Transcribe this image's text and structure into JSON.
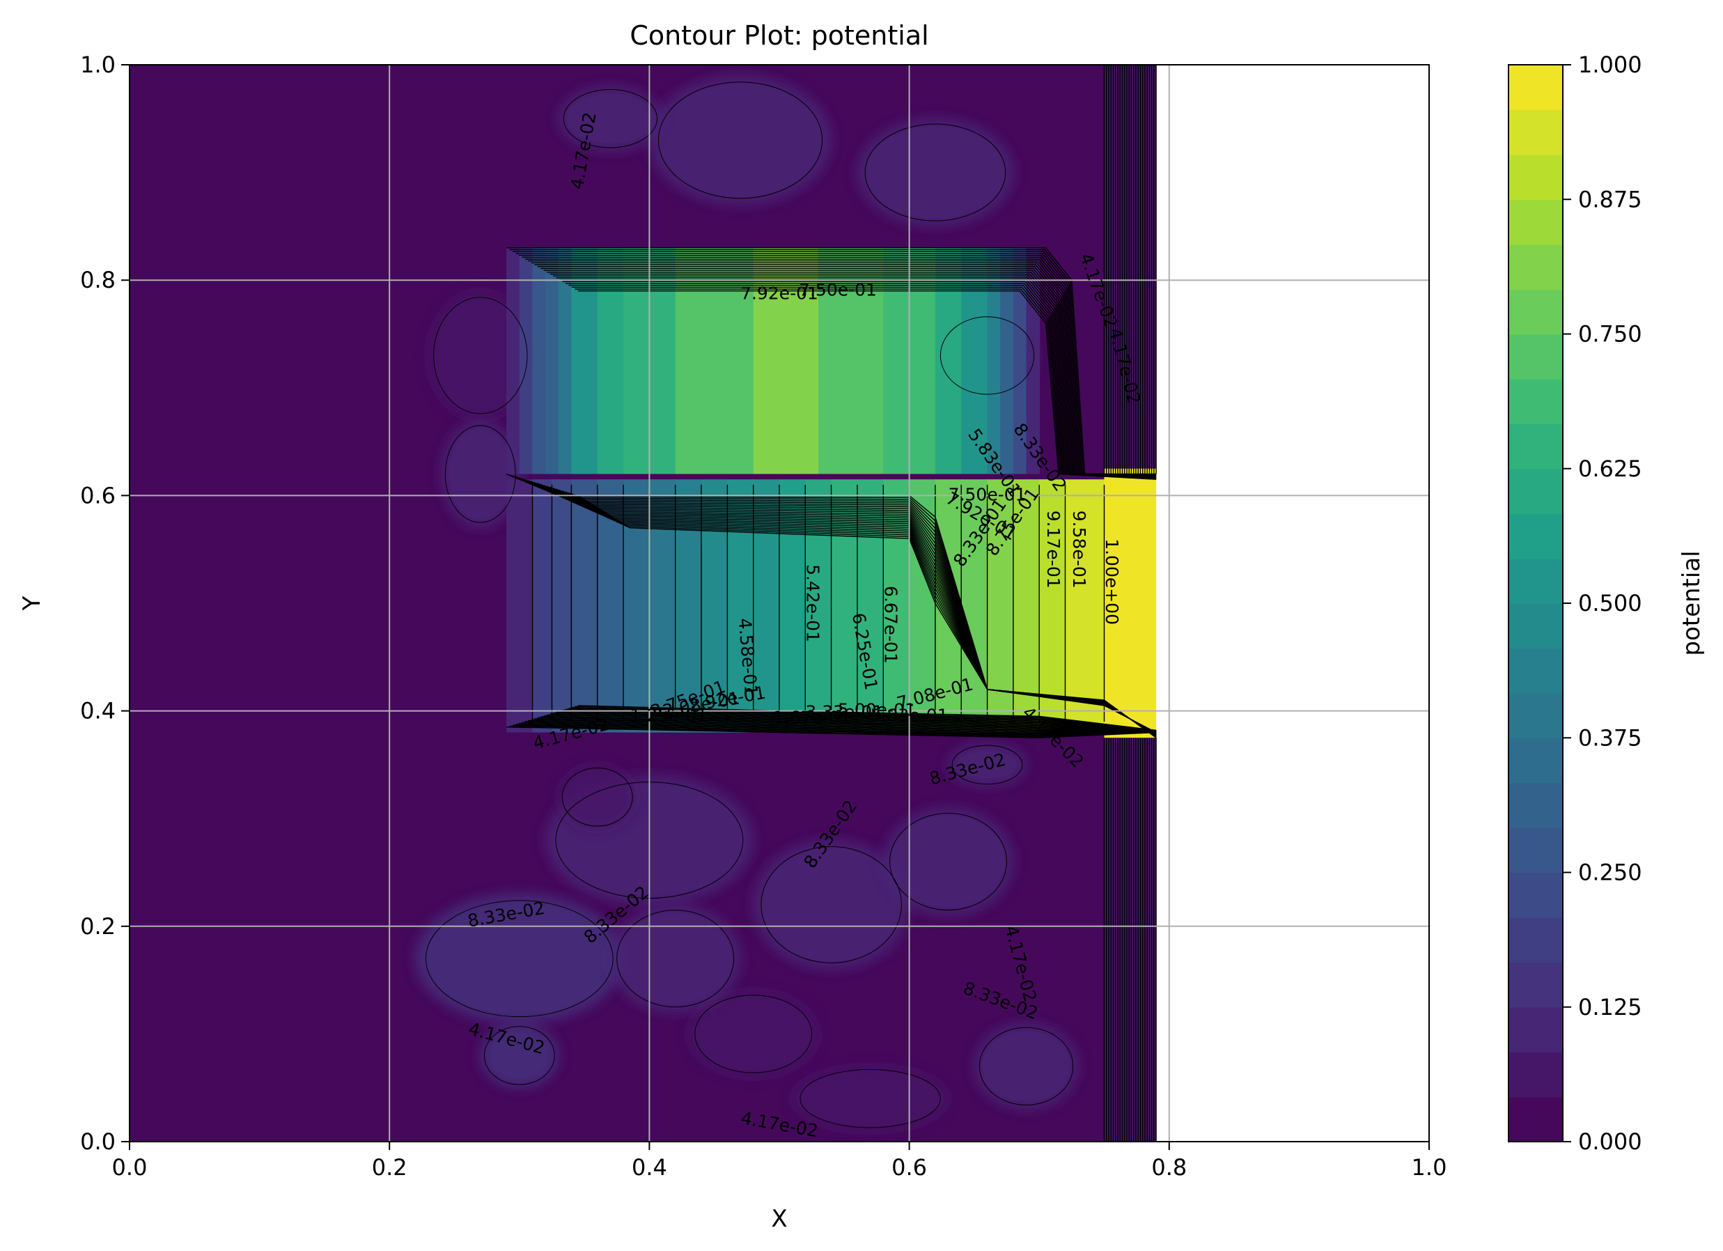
{
  "chart_data": {
    "type": "contour",
    "title": "Contour Plot: potential",
    "xlabel": "X",
    "ylabel": "Y",
    "xlim": [
      0.0,
      1.0
    ],
    "ylim": [
      0.0,
      1.0
    ],
    "grid": true,
    "x_ticks": [
      "0.0",
      "0.2",
      "0.4",
      "0.6",
      "0.8",
      "1.0"
    ],
    "y_ticks": [
      "0.0",
      "0.2",
      "0.4",
      "0.6",
      "0.8",
      "1.0"
    ],
    "colorbar": {
      "label": "potential",
      "colormap": "viridis",
      "range": [
        0.0,
        1.0
      ],
      "levels": 24,
      "ticks": [
        "0.000",
        "0.125",
        "0.250",
        "0.375",
        "0.500",
        "0.625",
        "0.750",
        "0.875",
        "1.000"
      ]
    },
    "regions": {
      "background_value": 0.02,
      "noisy_patches_value_range": [
        0.042,
        0.15
      ],
      "high_region": {
        "x": [
          0.29,
          0.79
        ],
        "y": [
          0.38,
          0.83
        ],
        "max_value": 0.85,
        "peak_x": 0.5,
        "peak_y": 0.7
      },
      "electrode": {
        "x": [
          0.75,
          1.0
        ],
        "y": [
          0.375,
          0.625
        ],
        "value": 1.0
      },
      "blank_region_x": [
        0.79,
        1.0
      ]
    },
    "contour_labels": [
      {
        "text": "4.17e-02",
        "x": 0.35,
        "y": 0.92,
        "angle": -80
      },
      {
        "text": "7.92e-01",
        "x": 0.5,
        "y": 0.787,
        "angle": 0
      },
      {
        "text": "7.50e-01",
        "x": 0.545,
        "y": 0.79,
        "angle": 0
      },
      {
        "text": "4.17e-02",
        "x": 0.745,
        "y": 0.79,
        "angle": 70
      },
      {
        "text": "4.17e-02",
        "x": 0.765,
        "y": 0.72,
        "angle": 75
      },
      {
        "text": "5.83e-01",
        "x": 0.665,
        "y": 0.63,
        "angle": 55
      },
      {
        "text": "8.33e-02",
        "x": 0.7,
        "y": 0.635,
        "angle": 55
      },
      {
        "text": "7.50e-01",
        "x": 0.66,
        "y": 0.6,
        "angle": 0
      },
      {
        "text": "7.92e-01",
        "x": 0.655,
        "y": 0.58,
        "angle": 30
      },
      {
        "text": "8.33e-01",
        "x": 0.655,
        "y": 0.565,
        "angle": -55
      },
      {
        "text": "8.75e-01",
        "x": 0.68,
        "y": 0.575,
        "angle": -55
      },
      {
        "text": "9.17e-01",
        "x": 0.71,
        "y": 0.55,
        "angle": 90
      },
      {
        "text": "9.58e-01",
        "x": 0.73,
        "y": 0.55,
        "angle": 90
      },
      {
        "text": "1.00e+00",
        "x": 0.755,
        "y": 0.52,
        "angle": 90
      },
      {
        "text": "5.42e-01",
        "x": 0.525,
        "y": 0.5,
        "angle": 90
      },
      {
        "text": "6.67e-01",
        "x": 0.585,
        "y": 0.48,
        "angle": 90
      },
      {
        "text": "6.25e-01",
        "x": 0.565,
        "y": 0.455,
        "angle": 80
      },
      {
        "text": "4.58e-01",
        "x": 0.475,
        "y": 0.45,
        "angle": 85
      },
      {
        "text": "7.08e-01",
        "x": 0.62,
        "y": 0.415,
        "angle": -15
      },
      {
        "text": "4.17e-02",
        "x": 0.71,
        "y": 0.375,
        "angle": 45
      },
      {
        "text": "3.75e-01",
        "x": 0.43,
        "y": 0.41,
        "angle": -20
      },
      {
        "text": "2.08e-01",
        "x": 0.44,
        "y": 0.405,
        "angle": -10
      },
      {
        "text": "2.92e-01",
        "x": 0.46,
        "y": 0.41,
        "angle": -10
      },
      {
        "text": "1.25e-01",
        "x": 0.415,
        "y": 0.395,
        "angle": 0
      },
      {
        "text": "1.67e-01",
        "x": 0.525,
        "y": 0.393,
        "angle": 0
      },
      {
        "text": "3.33e-01",
        "x": 0.55,
        "y": 0.398,
        "angle": 0
      },
      {
        "text": "5.00e-01",
        "x": 0.575,
        "y": 0.4,
        "angle": 0
      },
      {
        "text": "5.83e-01",
        "x": 0.6,
        "y": 0.395,
        "angle": 0
      },
      {
        "text": "4.17e-02",
        "x": 0.34,
        "y": 0.378,
        "angle": -15
      },
      {
        "text": "8.33e-02",
        "x": 0.645,
        "y": 0.345,
        "angle": -15
      },
      {
        "text": "8.33e-02",
        "x": 0.54,
        "y": 0.285,
        "angle": -55
      },
      {
        "text": "8.33e-02",
        "x": 0.29,
        "y": 0.21,
        "angle": -10
      },
      {
        "text": "8.33e-02",
        "x": 0.375,
        "y": 0.21,
        "angle": -40
      },
      {
        "text": "4.17e-02",
        "x": 0.685,
        "y": 0.165,
        "angle": 75
      },
      {
        "text": "8.33e-02",
        "x": 0.67,
        "y": 0.13,
        "angle": 20
      },
      {
        "text": "4.17e-02",
        "x": 0.29,
        "y": 0.095,
        "angle": 15
      },
      {
        "text": "4.17e-02",
        "x": 0.5,
        "y": 0.015,
        "angle": 10
      }
    ]
  }
}
